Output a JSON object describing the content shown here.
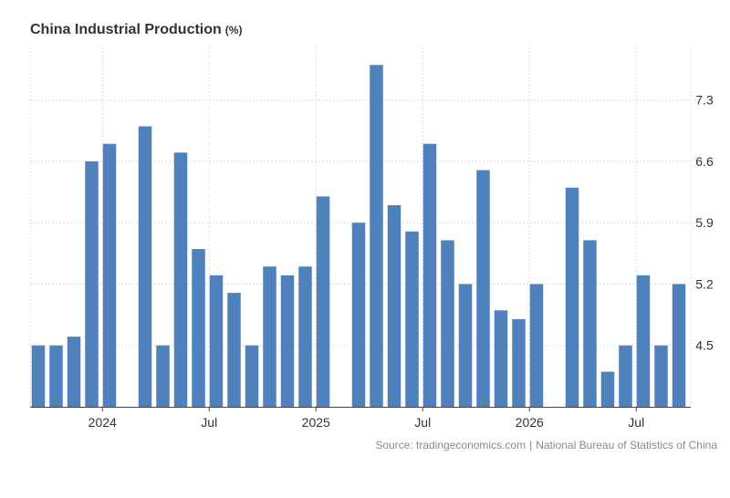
{
  "title": "China Industrial Production",
  "unit": "(%)",
  "source": {
    "provider": "tradingeconomics.com",
    "separator": "|",
    "agency": "National Bureau of Statistics of China"
  },
  "colors": {
    "bar": "#4f81bd",
    "grid": "#dcdcdc",
    "axis": "#444444",
    "text": "#333333"
  },
  "chart_data": {
    "type": "bar",
    "categories": [
      "2023-09",
      "2023-10",
      "2023-11",
      "2023-12",
      "2024-01",
      "2024-02",
      "2024-03",
      "2024-04",
      "2024-05",
      "2024-06",
      "2024-07",
      "2024-08",
      "2024-09",
      "2024-10",
      "2024-11",
      "2024-12",
      "2025-01",
      "2025-02",
      "2025-03",
      "2025-04",
      "2025-05",
      "2025-06",
      "2025-07",
      "2025-08",
      "2025-09",
      "2025-10",
      "2025-11",
      "2025-12",
      "2026-01",
      "2026-02",
      "2026-03",
      "2026-04",
      "2026-05",
      "2026-06",
      "2026-07",
      "2026-08",
      "2026-09"
    ],
    "values": [
      4.5,
      4.5,
      4.6,
      6.6,
      6.8,
      null,
      7.0,
      4.5,
      6.7,
      5.6,
      5.3,
      5.1,
      4.5,
      5.4,
      5.3,
      5.4,
      6.2,
      null,
      5.9,
      7.7,
      6.1,
      5.8,
      6.8,
      5.7,
      5.2,
      6.5,
      4.9,
      4.8,
      5.2,
      null,
      6.3,
      5.7,
      4.2,
      4.5,
      5.3,
      4.5,
      5.2
    ],
    "x_tick_labels": [
      {
        "at": "2024-01",
        "label": "2024"
      },
      {
        "at": "2024-07",
        "label": "Jul"
      },
      {
        "at": "2025-01",
        "label": "2025"
      },
      {
        "at": "2025-07",
        "label": "Jul"
      },
      {
        "at": "2026-01",
        "label": "2026"
      },
      {
        "at": "2026-07",
        "label": "Jul"
      }
    ],
    "y_ticks": [
      "4.5",
      "5.2",
      "5.9",
      "6.6",
      "7.3"
    ],
    "ylim": [
      3.8,
      7.9
    ],
    "y_axis_side": "right",
    "grid": true,
    "legend": "none"
  }
}
